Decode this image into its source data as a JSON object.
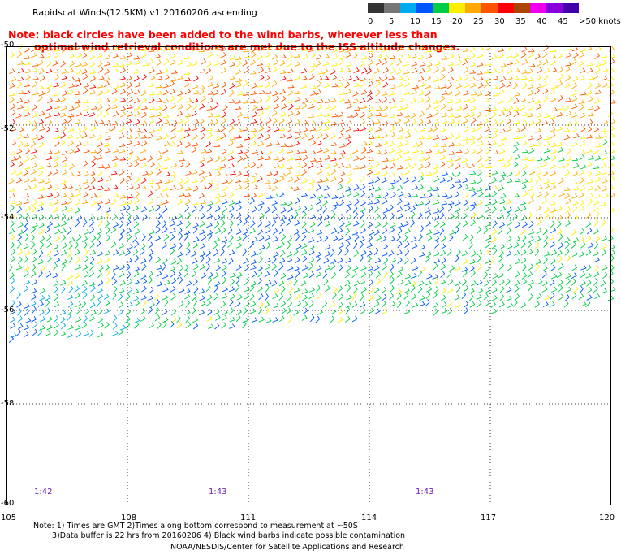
{
  "title": "Rapidscat Winds(12.5KM) v1 20160206 ascending",
  "note": {
    "line1": "Note: black circles have been added to the wind barbs, wherever less than",
    "line2": "optimal wind retrieval conditions are met due to the ISS altitude changes."
  },
  "legend": {
    "labels": [
      "0",
      "5",
      "10",
      "15",
      "20",
      "25",
      "30",
      "35",
      "40",
      "45",
      ">50 knots"
    ],
    "colors": [
      "#333333",
      "#777777",
      "#00aaee",
      "#0055ff",
      "#00cc44",
      "#ffee00",
      "#ffaa00",
      "#ff5500",
      "#ff0000",
      "#aa4400",
      "#ee00ee",
      "#8800dd",
      "#4400aa"
    ]
  },
  "lat_labels": [
    "-50",
    "-52",
    "-54",
    "-56",
    "-58",
    "-60"
  ],
  "lon_labels": [
    "105",
    "108",
    "111",
    "114",
    "117",
    "120"
  ],
  "times": [
    "1:42",
    "1:43",
    "1:43"
  ],
  "footer": {
    "line1": "Note: 1) Times are GMT 2)Times along bottom correspond to measurement at ~50S",
    "line2": "3)Data buffer is 22 hrs from 20160206 4) Black wind barbs indicate possible contamination",
    "line3": "NOAA/NESDIS/Center for Satellite Applications and Research"
  }
}
